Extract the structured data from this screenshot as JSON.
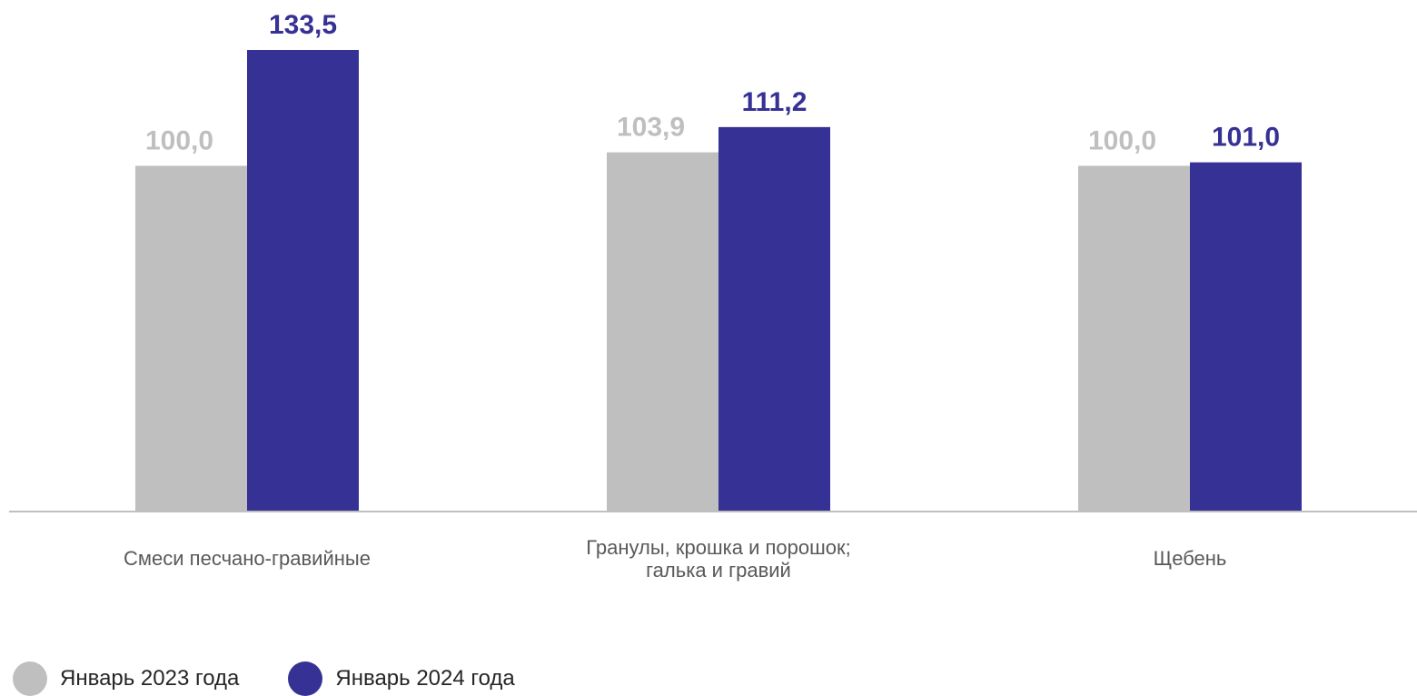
{
  "chart_data": {
    "type": "bar",
    "categories": [
      [
        "Смеси песчано-гравийные"
      ],
      [
        "Гранулы, крошка и порошок;",
        "галька и гравий"
      ],
      [
        "Щебень"
      ]
    ],
    "series": [
      {
        "name": "Январь 2023 года",
        "color": "#bfbfbf",
        "values": [
          100.0,
          103.9,
          100.0
        ],
        "labels": [
          "100,0",
          "103,9",
          "100,0"
        ]
      },
      {
        "name": "Январь 2024 года",
        "color": "#363194",
        "values": [
          133.5,
          111.2,
          101.0
        ],
        "labels": [
          "133,5",
          "111,2",
          "101,0"
        ]
      }
    ],
    "ylim": [
      0,
      133.5
    ],
    "grid": false,
    "legend_position": "bottom-left",
    "axis_color": "#c0c0c0",
    "category_label_color": "#595959"
  }
}
